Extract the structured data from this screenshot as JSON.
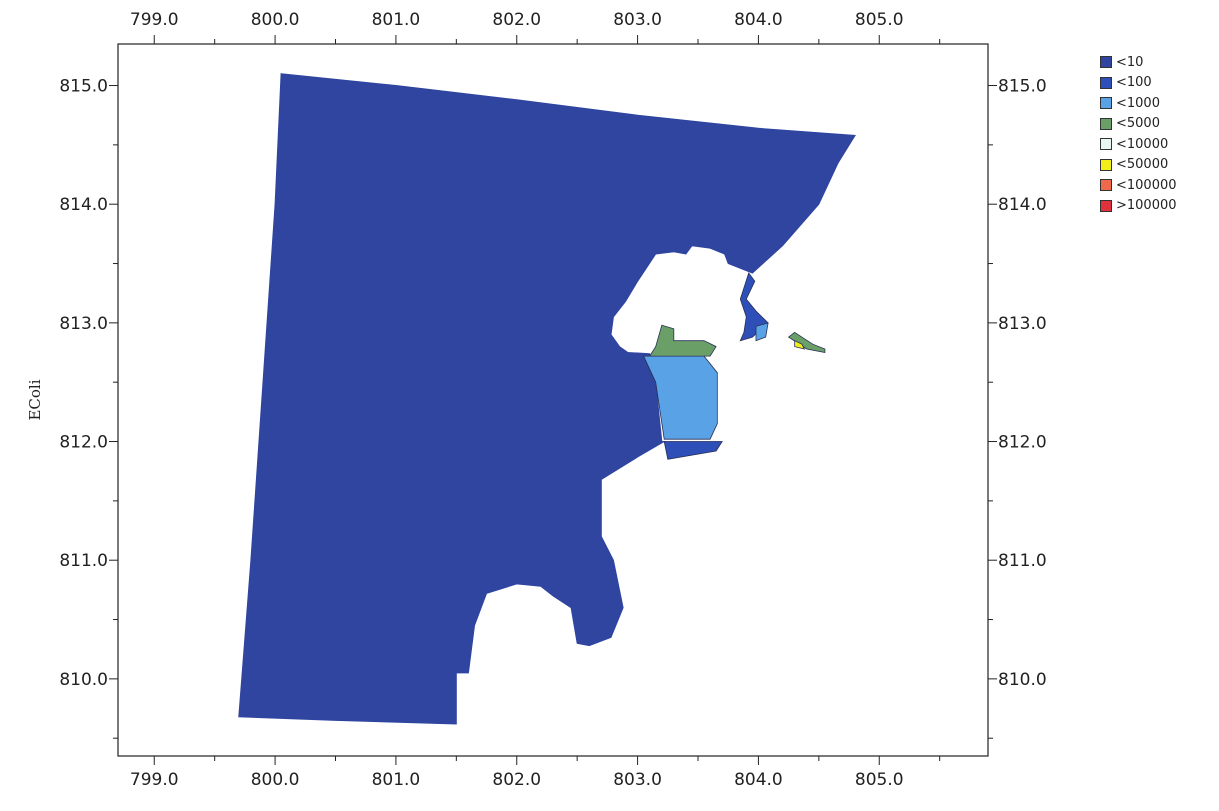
{
  "chart_data": {
    "type": "heatmap",
    "title": "",
    "ylabel": "EColi",
    "xlabel": "",
    "xlim": [
      798.7,
      805.9
    ],
    "ylim": [
      809.35,
      815.35
    ],
    "xticks": [
      "799.0",
      "800.0",
      "801.0",
      "802.0",
      "803.0",
      "804.0",
      "805.0"
    ],
    "yticks": [
      "810.0",
      "811.0",
      "812.0",
      "813.0",
      "814.0",
      "815.0"
    ],
    "grid": false,
    "legend_position": "top-right",
    "legend": [
      {
        "label": "<10",
        "color": "#2f45a0"
      },
      {
        "label": "<100",
        "color": "#2f4fb8"
      },
      {
        "label": "<1000",
        "color": "#5aa2e6"
      },
      {
        "label": "<5000",
        "color": "#6aa068"
      },
      {
        "label": "<10000",
        "color": "#e8f6f2"
      },
      {
        "label": "<50000",
        "color": "#f2ee1a"
      },
      {
        "label": "<100000",
        "color": "#ef6a4c"
      },
      {
        "label": ">100000",
        "color": "#e0323c"
      }
    ],
    "regions": [
      {
        "class": "<10",
        "color": "#2f45a0",
        "points": [
          [
            800.05,
            815.1
          ],
          [
            801.0,
            815.0
          ],
          [
            802.0,
            814.88
          ],
          [
            803.0,
            814.75
          ],
          [
            804.0,
            814.64
          ],
          [
            804.8,
            814.58
          ],
          [
            804.66,
            814.35
          ],
          [
            804.5,
            814.0
          ],
          [
            804.2,
            813.65
          ],
          [
            803.95,
            813.42
          ],
          [
            803.75,
            813.5
          ],
          [
            803.72,
            813.58
          ],
          [
            803.6,
            813.63
          ],
          [
            803.45,
            813.65
          ],
          [
            803.4,
            813.58
          ],
          [
            803.3,
            813.6
          ],
          [
            803.15,
            813.58
          ],
          [
            803.0,
            813.35
          ],
          [
            802.9,
            813.18
          ],
          [
            802.8,
            813.05
          ],
          [
            802.78,
            812.9
          ],
          [
            802.85,
            812.8
          ],
          [
            802.92,
            812.75
          ],
          [
            803.1,
            812.74
          ],
          [
            803.15,
            812.5
          ],
          [
            803.2,
            812.0
          ],
          [
            803.22,
            812.0
          ],
          [
            803.0,
            811.87
          ],
          [
            802.7,
            811.68
          ],
          [
            802.7,
            811.2
          ],
          [
            802.8,
            811.0
          ],
          [
            802.88,
            810.6
          ],
          [
            802.78,
            810.35
          ],
          [
            802.6,
            810.28
          ],
          [
            802.5,
            810.3
          ],
          [
            802.45,
            810.6
          ],
          [
            802.3,
            810.7
          ],
          [
            802.2,
            810.78
          ],
          [
            802.0,
            810.8
          ],
          [
            801.75,
            810.72
          ],
          [
            801.65,
            810.45
          ],
          [
            801.6,
            810.05
          ],
          [
            801.5,
            810.05
          ],
          [
            801.5,
            809.62
          ],
          [
            800.5,
            809.65
          ],
          [
            799.7,
            809.68
          ],
          [
            799.8,
            811.0
          ],
          [
            799.9,
            812.5
          ],
          [
            800.0,
            814.0
          ]
        ]
      },
      {
        "class": "<100",
        "color": "#2f4fb8",
        "points": [
          [
            803.22,
            812.0
          ],
          [
            803.7,
            812.0
          ],
          [
            803.65,
            811.92
          ],
          [
            803.25,
            811.85
          ]
        ]
      },
      {
        "class": "<100",
        "color": "#2f4fb8",
        "points": [
          [
            803.92,
            813.42
          ],
          [
            803.97,
            813.35
          ],
          [
            803.9,
            813.2
          ],
          [
            803.98,
            813.1
          ],
          [
            804.08,
            813.0
          ],
          [
            803.95,
            812.88
          ],
          [
            803.85,
            812.85
          ],
          [
            803.88,
            812.92
          ],
          [
            803.9,
            813.05
          ],
          [
            803.85,
            813.2
          ]
        ]
      },
      {
        "class": "<1000",
        "color": "#5aa2e6",
        "points": [
          [
            803.05,
            812.72
          ],
          [
            803.55,
            812.72
          ],
          [
            803.66,
            812.58
          ],
          [
            803.66,
            812.15
          ],
          [
            803.6,
            812.02
          ],
          [
            803.22,
            812.02
          ],
          [
            803.15,
            812.5
          ]
        ]
      },
      {
        "class": "<1000",
        "color": "#5aa2e6",
        "points": [
          [
            803.98,
            812.97
          ],
          [
            804.08,
            813.0
          ],
          [
            804.06,
            812.88
          ],
          [
            803.98,
            812.85
          ]
        ]
      },
      {
        "class": "<5000",
        "color": "#6aa068",
        "points": [
          [
            803.2,
            812.98
          ],
          [
            803.3,
            812.95
          ],
          [
            803.3,
            812.85
          ],
          [
            803.55,
            812.85
          ],
          [
            803.65,
            812.8
          ],
          [
            803.6,
            812.72
          ],
          [
            803.1,
            812.72
          ],
          [
            803.15,
            812.8
          ]
        ]
      },
      {
        "class": "<5000",
        "color": "#6aa068",
        "points": [
          [
            804.3,
            812.92
          ],
          [
            804.45,
            812.82
          ],
          [
            804.55,
            812.78
          ],
          [
            804.55,
            812.75
          ],
          [
            804.4,
            812.78
          ],
          [
            804.25,
            812.88
          ]
        ]
      },
      {
        "class": "<50000",
        "color": "#f2ee1a",
        "points": [
          [
            804.3,
            812.85
          ],
          [
            804.36,
            812.82
          ],
          [
            804.38,
            812.78
          ],
          [
            804.3,
            812.8
          ]
        ]
      }
    ]
  }
}
